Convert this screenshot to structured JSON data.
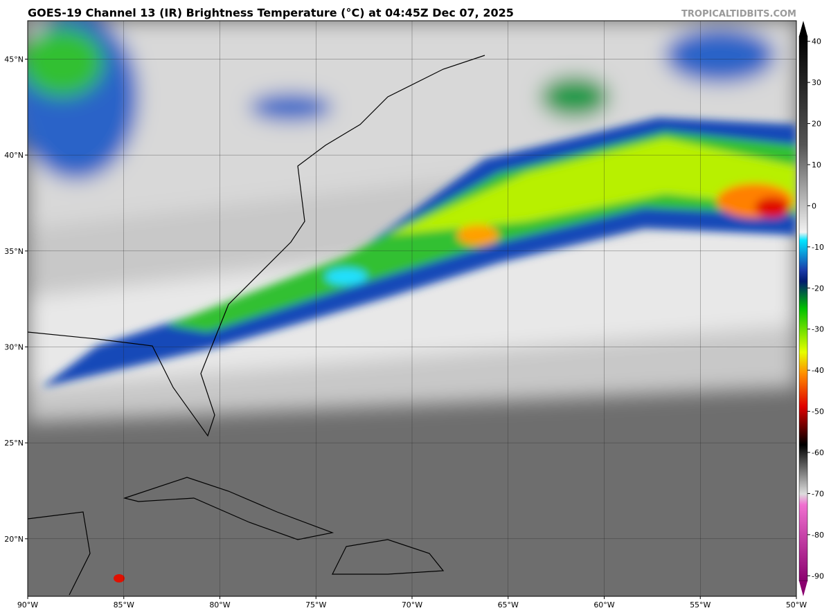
{
  "map": {
    "title": "GOES-19 Channel 13 (IR) Brightness Temperature (°C) at 04:45Z Dec 07, 2025",
    "watermark": "TROPICALTIDBITS.COM",
    "xlim": [
      -90,
      -50
    ],
    "ylim": [
      17,
      47
    ],
    "lon_ticks": [
      {
        "value": -90,
        "label": "90°W"
      },
      {
        "value": -85,
        "label": "85°W"
      },
      {
        "value": -80,
        "label": "80°W"
      },
      {
        "value": -75,
        "label": "75°W"
      },
      {
        "value": -70,
        "label": "70°W"
      },
      {
        "value": -65,
        "label": "65°W"
      },
      {
        "value": -60,
        "label": "60°W"
      },
      {
        "value": -55,
        "label": "55°W"
      },
      {
        "value": -50,
        "label": "50°W"
      }
    ],
    "lat_ticks": [
      {
        "value": 20,
        "label": "20°N"
      },
      {
        "value": 25,
        "label": "25°N"
      },
      {
        "value": 30,
        "label": "30°N"
      },
      {
        "value": 35,
        "label": "35°N"
      },
      {
        "value": 40,
        "label": "40°N"
      },
      {
        "value": 45,
        "label": "45°N"
      }
    ],
    "colorbar": {
      "lim": [
        -95,
        45
      ],
      "ticks": [
        40,
        30,
        20,
        10,
        0,
        -10,
        -20,
        -30,
        -40,
        -50,
        -60,
        -70,
        -80,
        -90
      ]
    }
  }
}
